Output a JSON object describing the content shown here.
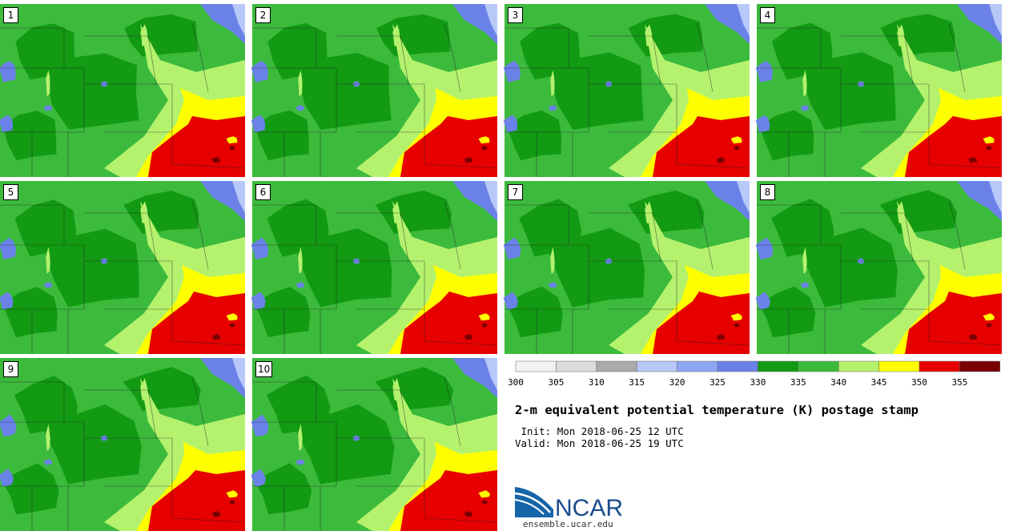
{
  "title": "2-m equivalent potential temperature (K) postage stamp",
  "init_label": " Init:",
  "init_time": "Mon 2018-06-25 12 UTC",
  "valid_label": "Valid:",
  "valid_time": "Mon 2018-06-25 19 UTC",
  "members": [
    "1",
    "2",
    "3",
    "4",
    "5",
    "6",
    "7",
    "8",
    "9",
    "10"
  ],
  "colorbar": {
    "ticks": [
      "300",
      "305",
      "310",
      "315",
      "320",
      "325",
      "330",
      "335",
      "340",
      "345",
      "350",
      "355"
    ],
    "colors": [
      "#f2f2f2",
      "#dcdcdc",
      "#aaaaaa",
      "#b8c8f8",
      "#8ea6f2",
      "#6a82e8",
      "#129a12",
      "#3cba3c",
      "#b4f26e",
      "#ffff00",
      "#e60000",
      "#7a0000"
    ]
  },
  "logo_text": "NCAR",
  "logo_url": "ensemble.ucar.edu"
}
